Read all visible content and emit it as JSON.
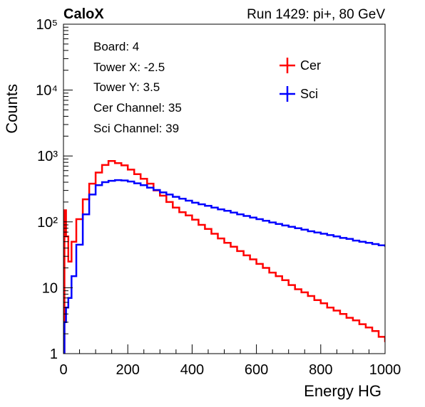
{
  "header": {
    "left_title": "CaloX",
    "right_title": "Run 1429: pi+, 80 GeV"
  },
  "info_box": [
    "Board: 4",
    "Tower X: -2.5",
    "Tower Y: 3.5",
    "Cer Channel: 35",
    "Sci Channel: 39"
  ],
  "chart_data": {
    "type": "line",
    "xlabel": "Energy HG",
    "ylabel": "Counts",
    "xlim": [
      0,
      1000
    ],
    "ylim": [
      1,
      100000
    ],
    "y_scale": "log",
    "x_ticks": [
      0,
      200,
      400,
      600,
      800,
      1000
    ],
    "x_tick_labels": [
      "0",
      "200",
      "400",
      "600",
      "800",
      "1000"
    ],
    "y_ticks": [
      1,
      10,
      100,
      1000,
      10000,
      100000
    ],
    "y_tick_labels": [
      "1",
      "10",
      "10²",
      "10³",
      "10⁴",
      "10⁵"
    ],
    "legend": "top-right",
    "grid": false,
    "series": [
      {
        "name": "Cer",
        "color": "#ff0000",
        "points": [
          [
            0,
            1
          ],
          [
            3,
            150
          ],
          [
            8,
            60
          ],
          [
            15,
            25
          ],
          [
            25,
            50
          ],
          [
            40,
            110
          ],
          [
            60,
            220
          ],
          [
            80,
            380
          ],
          [
            100,
            560
          ],
          [
            120,
            730
          ],
          [
            140,
            840
          ],
          [
            160,
            780
          ],
          [
            180,
            720
          ],
          [
            200,
            620
          ],
          [
            220,
            530
          ],
          [
            240,
            450
          ],
          [
            260,
            380
          ],
          [
            280,
            300
          ],
          [
            300,
            250
          ],
          [
            320,
            200
          ],
          [
            340,
            165
          ],
          [
            360,
            140
          ],
          [
            380,
            125
          ],
          [
            400,
            108
          ],
          [
            420,
            90
          ],
          [
            440,
            78
          ],
          [
            460,
            66
          ],
          [
            480,
            56
          ],
          [
            500,
            48
          ],
          [
            520,
            42
          ],
          [
            540,
            36
          ],
          [
            560,
            31
          ],
          [
            580,
            27
          ],
          [
            600,
            23
          ],
          [
            620,
            20
          ],
          [
            640,
            17
          ],
          [
            660,
            15
          ],
          [
            680,
            13
          ],
          [
            700,
            11
          ],
          [
            720,
            9.5
          ],
          [
            740,
            8.5
          ],
          [
            760,
            7.5
          ],
          [
            780,
            6.5
          ],
          [
            800,
            5.8
          ],
          [
            820,
            5
          ],
          [
            840,
            4.5
          ],
          [
            860,
            4
          ],
          [
            880,
            3.5
          ],
          [
            900,
            3.2
          ],
          [
            920,
            2.8
          ],
          [
            940,
            2.5
          ],
          [
            960,
            2.2
          ],
          [
            980,
            1.8
          ],
          [
            1000,
            1.5
          ]
        ]
      },
      {
        "name": "Sci",
        "color": "#0000ff",
        "points": [
          [
            0,
            1
          ],
          [
            3,
            3
          ],
          [
            8,
            5
          ],
          [
            15,
            7
          ],
          [
            25,
            15
          ],
          [
            40,
            45
          ],
          [
            60,
            130
          ],
          [
            80,
            260
          ],
          [
            100,
            360
          ],
          [
            120,
            400
          ],
          [
            140,
            420
          ],
          [
            160,
            430
          ],
          [
            180,
            425
          ],
          [
            200,
            410
          ],
          [
            220,
            385
          ],
          [
            240,
            360
          ],
          [
            260,
            330
          ],
          [
            280,
            305
          ],
          [
            300,
            280
          ],
          [
            320,
            260
          ],
          [
            340,
            240
          ],
          [
            360,
            225
          ],
          [
            380,
            210
          ],
          [
            400,
            195
          ],
          [
            420,
            185
          ],
          [
            440,
            175
          ],
          [
            460,
            165
          ],
          [
            480,
            155
          ],
          [
            500,
            147
          ],
          [
            520,
            138
          ],
          [
            540,
            130
          ],
          [
            560,
            123
          ],
          [
            580,
            116
          ],
          [
            600,
            110
          ],
          [
            620,
            104
          ],
          [
            640,
            98
          ],
          [
            660,
            93
          ],
          [
            680,
            88
          ],
          [
            700,
            84
          ],
          [
            720,
            80
          ],
          [
            740,
            76
          ],
          [
            760,
            72
          ],
          [
            780,
            69
          ],
          [
            800,
            66
          ],
          [
            820,
            63
          ],
          [
            840,
            60
          ],
          [
            860,
            57
          ],
          [
            880,
            55
          ],
          [
            900,
            52
          ],
          [
            920,
            50
          ],
          [
            940,
            48
          ],
          [
            960,
            46
          ],
          [
            980,
            44
          ],
          [
            1000,
            42
          ]
        ]
      }
    ]
  }
}
